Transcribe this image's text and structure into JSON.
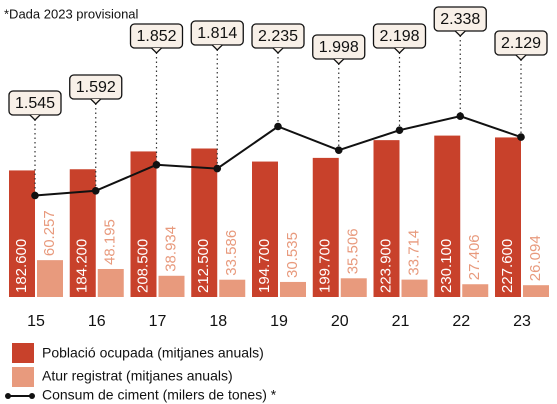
{
  "chart_data": {
    "type": "bar-line",
    "note": "*Dada 2023 provisional",
    "categories": [
      "15",
      "16",
      "17",
      "18",
      "19",
      "20",
      "21",
      "22",
      "23"
    ],
    "ylim": [
      10000,
      250000
    ],
    "y2lim": [
      1000,
      2600
    ],
    "series": [
      {
        "name": "Població ocupada (mitjanes anuals)",
        "color": "#c8412b",
        "type": "bar",
        "values": [
          182600,
          184200,
          208500,
          212500,
          194700,
          199700,
          223900,
          230100,
          227600
        ],
        "value_labels": [
          "182.600",
          "184.200",
          "208.500",
          "212.500",
          "194.700",
          "199.700",
          "223.900",
          "230.100",
          "227.600"
        ]
      },
      {
        "name": "Atur registrat (mitjanes anuals)",
        "color": "#e89a7d",
        "type": "bar",
        "values": [
          60257,
          48195,
          38934,
          33586,
          30535,
          35506,
          33714,
          27406,
          26094
        ],
        "value_labels": [
          "60.257",
          "48.195",
          "38.934",
          "33.586",
          "30.535",
          "35.506",
          "33.714",
          "27.406",
          "26.094"
        ]
      },
      {
        "name": "Consum de ciment (milers de tones) *",
        "color": "#111111",
        "type": "line",
        "axis": "y2",
        "values": [
          1545,
          1592,
          1852,
          1814,
          2235,
          1998,
          2198,
          2338,
          2129
        ],
        "value_labels": [
          "1.545",
          "1.592",
          "1.852",
          "1.814",
          "2.235",
          "1.998",
          "2.198",
          "2.338",
          "2.129"
        ]
      }
    ]
  }
}
